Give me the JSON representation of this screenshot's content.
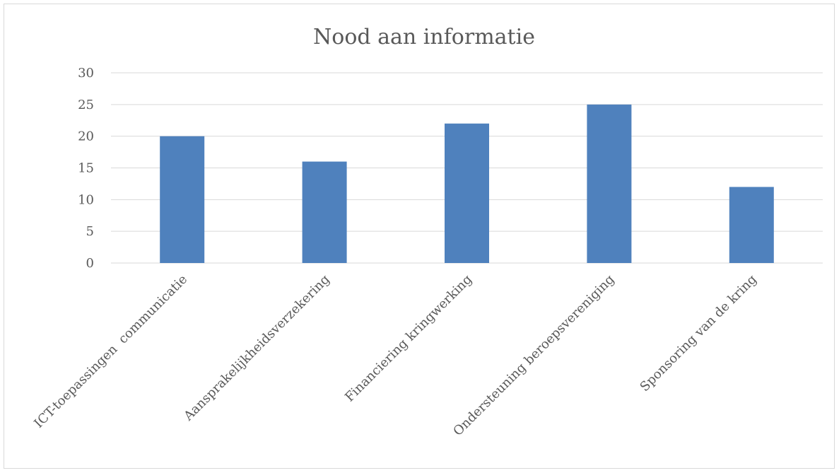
{
  "chart_data": {
    "type": "bar",
    "title": "Nood aan informatie",
    "categories": [
      "ICT-toepassingen  communicatie",
      "Aansprakelijkheidsverzekering",
      "Financiering kringwerking",
      "Ondersteuning beroepsvereniging",
      "Sponsoring van de kring"
    ],
    "values": [
      20,
      16,
      22,
      25,
      12
    ],
    "ylim": [
      0,
      30
    ],
    "yticks": [
      "0",
      "5",
      "10",
      "15",
      "20",
      "25",
      "30"
    ],
    "grid": true,
    "legend": "none",
    "bar_color": "#4f81bd"
  }
}
